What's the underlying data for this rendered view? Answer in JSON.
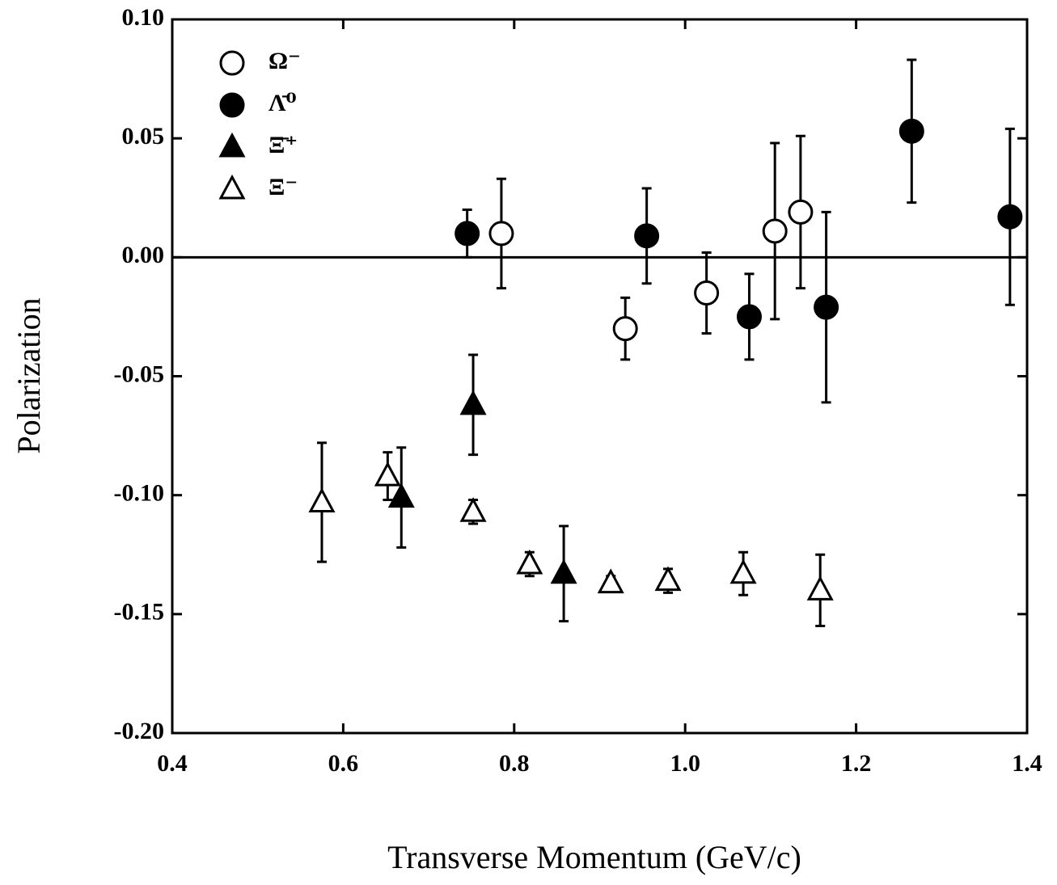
{
  "chart_data": {
    "type": "scatter",
    "x_label": "Transverse Momentum (GeV/c)",
    "y_label": "Polarization",
    "xlim": [
      0.4,
      1.4
    ],
    "ylim": [
      -0.2,
      0.1
    ],
    "xticks": [
      0.4,
      0.6,
      0.8,
      {
        "value": 1,
        "label": "1.0"
      },
      1.2,
      1.4
    ],
    "yticks": [
      {
        "value": 0.1,
        "label": "0.10"
      },
      {
        "value": 0.05,
        "label": "0.05"
      },
      {
        "value": 0,
        "label": "0.00"
      },
      {
        "value": -0.05,
        "label": "-0.05"
      },
      {
        "value": -0.1,
        "label": "-0.10"
      },
      {
        "value": -0.15,
        "label": "-0.15"
      },
      {
        "value": -0.2,
        "label": "-0.20"
      }
    ],
    "reference_line": 0,
    "legend": "upper left",
    "series": [
      {
        "name": "Ω⁻",
        "color": "#000000",
        "marker": "circle",
        "filled": false,
        "x": [
          0.785,
          0.93,
          1.025,
          1.105,
          1.135
        ],
        "values": [
          0.01,
          -0.03,
          -0.015,
          0.011,
          0.019
        ],
        "errors": [
          0.023,
          0.013,
          0.017,
          0.037,
          0.032
        ]
      },
      {
        "name": "Λ̄⁰",
        "color": "#000000",
        "marker": "circle",
        "filled": true,
        "x": [
          0.745,
          0.955,
          1.075,
          1.165,
          1.265,
          1.38
        ],
        "values": [
          0.01,
          0.009,
          -0.025,
          -0.021,
          0.053,
          0.017
        ],
        "errors": [
          0.01,
          0.02,
          0.018,
          0.04,
          0.03,
          0.037
        ]
      },
      {
        "name": "Ξ̄⁺",
        "color": "#000000",
        "marker": "triangle",
        "filled": true,
        "x": [
          0.668,
          0.752,
          0.858
        ],
        "values": [
          -0.101,
          -0.062,
          -0.133
        ],
        "errors": [
          0.021,
          0.021,
          0.02
        ]
      },
      {
        "name": "Ξ⁻",
        "color": "#000000",
        "marker": "triangle",
        "filled": false,
        "x": [
          0.575,
          0.652,
          0.752,
          0.818,
          0.913,
          0.98,
          1.068,
          1.158
        ],
        "values": [
          -0.103,
          -0.092,
          -0.107,
          -0.129,
          -0.137,
          -0.136,
          -0.133,
          -0.14
        ],
        "errors": [
          0.025,
          0.01,
          0.005,
          0.005,
          0.003,
          0.005,
          0.009,
          0.015
        ]
      }
    ]
  }
}
